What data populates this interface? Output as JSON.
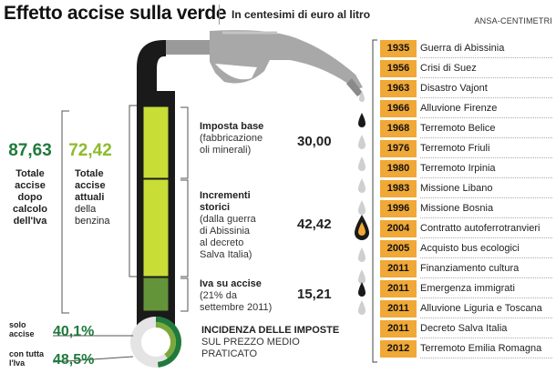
{
  "header": {
    "title": "Effetto accise sulla verde",
    "subtitle": "In centesimi di euro al litro",
    "source": "ANSA-CENTIMETRI"
  },
  "totals": {
    "after_vat": {
      "value": "87,63",
      "label_lines": [
        "Totale",
        "accise",
        "dopo",
        "calcolo",
        "dell'Iva"
      ]
    },
    "current": {
      "value": "72,42",
      "label_lines": [
        "Totale",
        "accise",
        "attuali",
        "della",
        "benzina"
      ]
    }
  },
  "breakdown": [
    {
      "heading": "Imposta base",
      "detail_lines": [
        "(fabbricazione",
        "oli minerali)"
      ],
      "value": "30,00"
    },
    {
      "heading_lines": [
        "Incrementi",
        "storici"
      ],
      "detail_lines": [
        "(dalla guerra",
        "di Abissinia",
        "al decreto",
        "Salva Italia)"
      ],
      "value": "42,42"
    },
    {
      "heading": "Iva su accise",
      "detail_lines": [
        "(21% da",
        "settembre 2011)"
      ],
      "value": "15,21"
    }
  ],
  "incidence": {
    "title": "INCIDENZA DELLE IMPOSTE",
    "subtitle_lines": [
      "SUL PREZZO MEDIO",
      "PRATICATO"
    ],
    "excise_only": {
      "label_lines": [
        "solo",
        "accise"
      ],
      "value": "40,1%",
      "fraction": 0.401
    },
    "with_vat": {
      "label_lines": [
        "con tutta",
        "l'Iva"
      ],
      "value": "48,5%",
      "fraction": 0.485
    }
  },
  "timeline": [
    {
      "year": "1935",
      "event": "Guerra di Abissinia"
    },
    {
      "year": "1956",
      "event": "Crisi di Suez"
    },
    {
      "year": "1963",
      "event": "Disastro Vajont"
    },
    {
      "year": "1966",
      "event": "Alluvione Firenze"
    },
    {
      "year": "1968",
      "event": "Terremoto Belice"
    },
    {
      "year": "1976",
      "event": "Terremoto Friuli"
    },
    {
      "year": "1980",
      "event": "Terremoto Irpinia"
    },
    {
      "year": "1983",
      "event": "Missione Libano"
    },
    {
      "year": "1996",
      "event": "Missione Bosnia"
    },
    {
      "year": "2004",
      "event": "Contratto autoferrotranvieri"
    },
    {
      "year": "2005",
      "event": "Acquisto bus ecologici"
    },
    {
      "year": "2011",
      "event": "Finanziamento cultura"
    },
    {
      "year": "2011",
      "event": "Emergenza immigrati"
    },
    {
      "year": "2011",
      "event": "Alluvione Liguria e Toscana"
    },
    {
      "year": "2011",
      "event": "Decreto Salva Italia"
    },
    {
      "year": "2012",
      "event": "Terremoto Emilia Romagna"
    }
  ],
  "colors": {
    "dark_green": "#1f7a3c",
    "light_green": "#c8dd36",
    "mid_green": "#63943a",
    "orange": "#f0a836",
    "pump_gray": "#9a9a9a",
    "tube_black": "#1a1a1a"
  }
}
